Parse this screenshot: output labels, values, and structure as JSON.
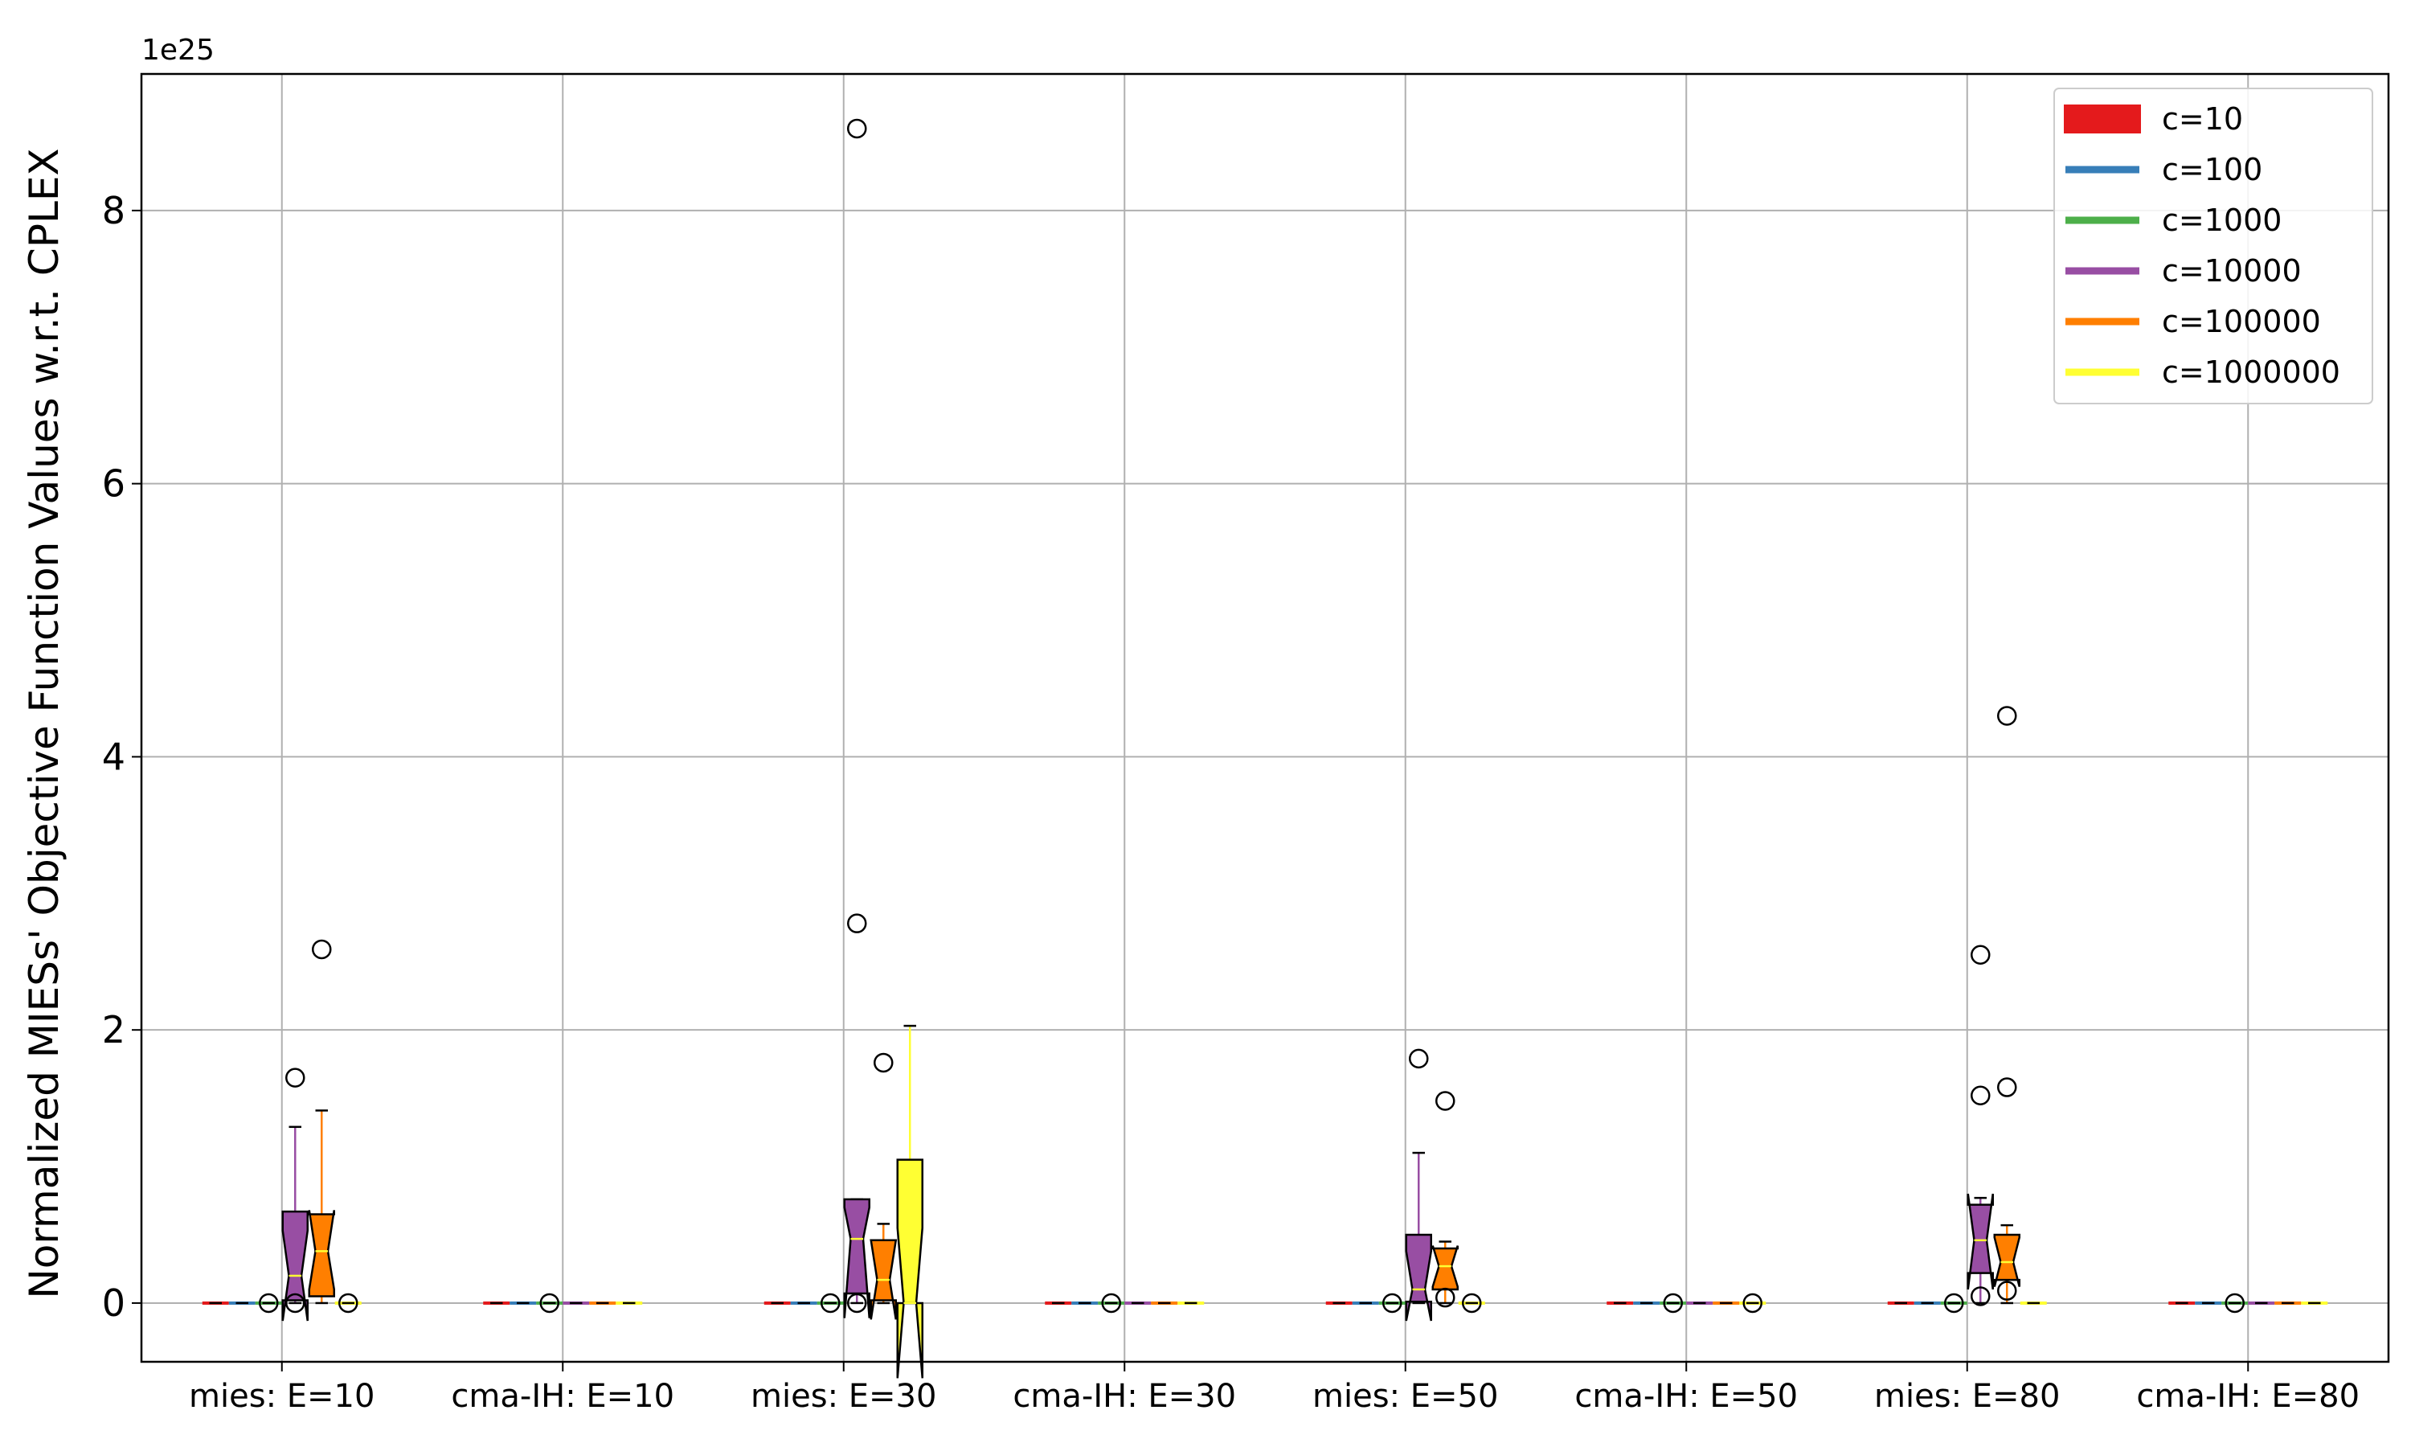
{
  "chart_data": {
    "type": "box",
    "ylabel": "Normalized MIESs' Objective Function Values w.r.t. CPLEX",
    "xlabel": "",
    "title": "",
    "y_multiplier": "1e25",
    "ylim": [
      -0.43,
      9.0
    ],
    "yticks": [
      0,
      2,
      4,
      6,
      8
    ],
    "grid": true,
    "legend_position": "top-right",
    "notched": true,
    "colors": {
      "c=10": "#e41a1c",
      "c=100": "#377eb8",
      "c=1000": "#4daf4a",
      "c=10000": "#984ea3",
      "c=100000": "#ff7f00",
      "c=1000000": "#ffff33"
    },
    "legend": [
      "c=10",
      "c=100",
      "c=1000",
      "c=10000",
      "c=100000",
      "c=1000000"
    ],
    "categories": [
      "mies: E=10",
      "cma-IH: E=10",
      "mies: E=30",
      "cma-IH: E=30",
      "mies: E=50",
      "cma-IH: E=50",
      "mies: E=80",
      "cma-IH: E=80"
    ],
    "series": [
      {
        "name": "c=10",
        "boxes": [
          {
            "q1": 0,
            "median": 0,
            "q3": 0,
            "whislo": 0,
            "whishi": 0,
            "notch": [
              0,
              0
            ],
            "fliers": []
          },
          {
            "q1": 0,
            "median": 0,
            "q3": 0,
            "whislo": 0,
            "whishi": 0,
            "notch": [
              0,
              0
            ],
            "fliers": []
          },
          {
            "q1": 0,
            "median": 0,
            "q3": 0,
            "whislo": 0,
            "whishi": 0,
            "notch": [
              0,
              0
            ],
            "fliers": []
          },
          {
            "q1": 0,
            "median": 0,
            "q3": 0,
            "whislo": 0,
            "whishi": 0,
            "notch": [
              0,
              0
            ],
            "fliers": []
          },
          {
            "q1": 0,
            "median": 0,
            "q3": 0,
            "whislo": 0,
            "whishi": 0,
            "notch": [
              0,
              0
            ],
            "fliers": []
          },
          {
            "q1": 0,
            "median": 0,
            "q3": 0,
            "whislo": 0,
            "whishi": 0,
            "notch": [
              0,
              0
            ],
            "fliers": []
          },
          {
            "q1": 0,
            "median": 0,
            "q3": 0,
            "whislo": 0,
            "whishi": 0,
            "notch": [
              0,
              0
            ],
            "fliers": []
          },
          {
            "q1": 0,
            "median": 0,
            "q3": 0,
            "whislo": 0,
            "whishi": 0,
            "notch": [
              0,
              0
            ],
            "fliers": []
          }
        ]
      },
      {
        "name": "c=100",
        "boxes": [
          {
            "q1": 0,
            "median": 0,
            "q3": 0,
            "whislo": 0,
            "whishi": 0,
            "notch": [
              0,
              0
            ],
            "fliers": []
          },
          {
            "q1": 0,
            "median": 0,
            "q3": 0,
            "whislo": 0,
            "whishi": 0,
            "notch": [
              0,
              0
            ],
            "fliers": []
          },
          {
            "q1": 0,
            "median": 0,
            "q3": 0,
            "whislo": 0,
            "whishi": 0,
            "notch": [
              0,
              0
            ],
            "fliers": []
          },
          {
            "q1": 0,
            "median": 0,
            "q3": 0,
            "whislo": 0,
            "whishi": 0,
            "notch": [
              0,
              0
            ],
            "fliers": []
          },
          {
            "q1": 0,
            "median": 0,
            "q3": 0,
            "whislo": 0,
            "whishi": 0,
            "notch": [
              0,
              0
            ],
            "fliers": []
          },
          {
            "q1": 0,
            "median": 0,
            "q3": 0,
            "whislo": 0,
            "whishi": 0,
            "notch": [
              0,
              0
            ],
            "fliers": []
          },
          {
            "q1": 0,
            "median": 0,
            "q3": 0,
            "whislo": 0,
            "whishi": 0,
            "notch": [
              0,
              0
            ],
            "fliers": []
          },
          {
            "q1": 0,
            "median": 0,
            "q3": 0,
            "whislo": 0,
            "whishi": 0,
            "notch": [
              0,
              0
            ],
            "fliers": []
          }
        ]
      },
      {
        "name": "c=1000",
        "boxes": [
          {
            "q1": 0,
            "median": 0,
            "q3": 0,
            "whislo": 0,
            "whishi": 0,
            "notch": [
              0,
              0
            ],
            "fliers": [
              0
            ]
          },
          {
            "q1": 0,
            "median": 0,
            "q3": 0,
            "whislo": 0,
            "whishi": 0,
            "notch": [
              0,
              0
            ],
            "fliers": [
              0
            ]
          },
          {
            "q1": 0,
            "median": 0,
            "q3": 0,
            "whislo": 0,
            "whishi": 0,
            "notch": [
              0,
              0
            ],
            "fliers": [
              0
            ]
          },
          {
            "q1": 0,
            "median": 0,
            "q3": 0,
            "whislo": 0,
            "whishi": 0,
            "notch": [
              0,
              0
            ],
            "fliers": [
              0
            ]
          },
          {
            "q1": 0,
            "median": 0,
            "q3": 0,
            "whislo": 0,
            "whishi": 0,
            "notch": [
              0,
              0
            ],
            "fliers": [
              0
            ]
          },
          {
            "q1": 0,
            "median": 0,
            "q3": 0,
            "whislo": 0,
            "whishi": 0,
            "notch": [
              0,
              0
            ],
            "fliers": [
              0
            ]
          },
          {
            "q1": 0,
            "median": 0,
            "q3": 0,
            "whislo": 0,
            "whishi": 0,
            "notch": [
              0,
              0
            ],
            "fliers": [
              0
            ]
          },
          {
            "q1": 0,
            "median": 0,
            "q3": 0,
            "whislo": 0,
            "whishi": 0,
            "notch": [
              0,
              0
            ],
            "fliers": [
              0
            ]
          }
        ]
      },
      {
        "name": "c=10000",
        "boxes": [
          {
            "q1": 0.02,
            "median": 0.2,
            "q3": 0.67,
            "whislo": 0,
            "whishi": 1.29,
            "notch": [
              -0.13,
              0.53
            ],
            "fliers": [
              1.65,
              0
            ]
          },
          {
            "q1": 0,
            "median": 0,
            "q3": 0,
            "whislo": 0,
            "whishi": 0,
            "notch": [
              0,
              0
            ],
            "fliers": []
          },
          {
            "q1": 0.07,
            "median": 0.47,
            "q3": 0.76,
            "whislo": 0,
            "whishi": 0.76,
            "notch": [
              -0.11,
              0.7
            ],
            "fliers": [
              2.78,
              8.6,
              0
            ]
          },
          {
            "q1": 0,
            "median": 0,
            "q3": 0,
            "whislo": 0,
            "whishi": 0,
            "notch": [
              0,
              0
            ],
            "fliers": []
          },
          {
            "q1": 0.01,
            "median": 0.1,
            "q3": 0.5,
            "whislo": 0,
            "whishi": 1.1,
            "notch": [
              -0.13,
              0.38
            ],
            "fliers": [
              1.79
            ]
          },
          {
            "q1": 0,
            "median": 0,
            "q3": 0,
            "whislo": 0,
            "whishi": 0,
            "notch": [
              0,
              0
            ],
            "fliers": []
          },
          {
            "q1": 0.22,
            "median": 0.46,
            "q3": 0.72,
            "whislo": 0,
            "whishi": 0.77,
            "notch": [
              0.1,
              0.8
            ],
            "fliers": [
              2.55,
              1.52,
              0.05
            ]
          },
          {
            "q1": 0,
            "median": 0,
            "q3": 0,
            "whislo": 0,
            "whishi": 0,
            "notch": [
              0,
              0
            ],
            "fliers": []
          }
        ]
      },
      {
        "name": "c=100000",
        "boxes": [
          {
            "q1": 0.05,
            "median": 0.38,
            "q3": 0.65,
            "whislo": 0,
            "whishi": 1.41,
            "notch": [
              0.1,
              0.68
            ],
            "fliers": [
              2.59
            ]
          },
          {
            "q1": 0,
            "median": 0,
            "q3": 0,
            "whislo": 0,
            "whishi": 0,
            "notch": [
              0,
              0
            ],
            "fliers": []
          },
          {
            "q1": 0.02,
            "median": 0.17,
            "q3": 0.46,
            "whislo": 0,
            "whishi": 0.58,
            "notch": [
              -0.12,
              0.46
            ],
            "fliers": [
              1.76
            ]
          },
          {
            "q1": 0,
            "median": 0,
            "q3": 0,
            "whislo": 0,
            "whishi": 0,
            "notch": [
              0,
              0
            ],
            "fliers": []
          },
          {
            "q1": 0.1,
            "median": 0.27,
            "q3": 0.4,
            "whislo": 0,
            "whishi": 0.45,
            "notch": [
              0.12,
              0.42
            ],
            "fliers": [
              1.48,
              0.04
            ]
          },
          {
            "q1": 0,
            "median": 0,
            "q3": 0,
            "whislo": 0,
            "whishi": 0,
            "notch": [
              0,
              0
            ],
            "fliers": []
          },
          {
            "q1": 0.17,
            "median": 0.3,
            "q3": 0.5,
            "whislo": 0,
            "whishi": 0.57,
            "notch": [
              0.12,
              0.48
            ],
            "fliers": [
              4.3,
              1.58,
              0.09
            ]
          },
          {
            "q1": 0,
            "median": 0,
            "q3": 0,
            "whislo": 0,
            "whishi": 0,
            "notch": [
              0,
              0
            ],
            "fliers": []
          }
        ]
      },
      {
        "name": "c=1000000",
        "boxes": [
          {
            "q1": 0,
            "median": 0,
            "q3": 0,
            "whislo": 0,
            "whishi": 0,
            "notch": [
              0,
              0
            ],
            "fliers": [
              0
            ]
          },
          {
            "q1": 0,
            "median": 0,
            "q3": 0,
            "whislo": 0,
            "whishi": 0,
            "notch": [
              0,
              0
            ],
            "fliers": []
          },
          {
            "q1": 0,
            "median": 0,
            "q3": 1.05,
            "whislo": 0,
            "whishi": 2.03,
            "notch": [
              -0.55,
              0.55
            ],
            "fliers": []
          },
          {
            "q1": 0,
            "median": 0,
            "q3": 0,
            "whislo": 0,
            "whishi": 0,
            "notch": [
              0,
              0
            ],
            "fliers": []
          },
          {
            "q1": 0,
            "median": 0,
            "q3": 0,
            "whislo": 0,
            "whishi": 0,
            "notch": [
              0,
              0
            ],
            "fliers": [
              0
            ]
          },
          {
            "q1": 0,
            "median": 0,
            "q3": 0,
            "whislo": 0,
            "whishi": 0,
            "notch": [
              0,
              0
            ],
            "fliers": [
              0
            ]
          },
          {
            "q1": 0,
            "median": 0,
            "q3": 0,
            "whislo": 0,
            "whishi": 0,
            "notch": [
              0,
              0
            ],
            "fliers": []
          },
          {
            "q1": 0,
            "median": 0,
            "q3": 0,
            "whislo": 0,
            "whishi": 0,
            "notch": [
              0,
              0
            ],
            "fliers": []
          }
        ]
      }
    ]
  }
}
